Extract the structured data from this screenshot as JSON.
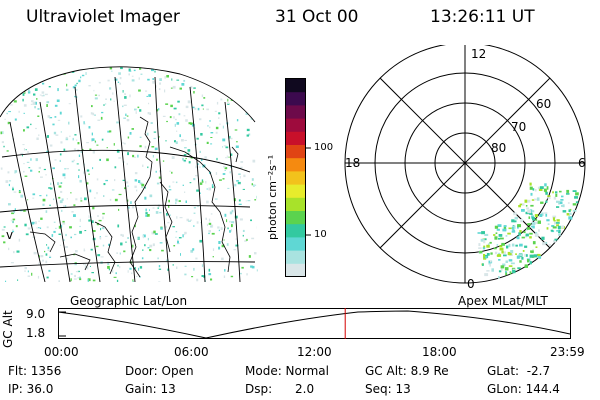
{
  "header": {
    "instrument": "Ultraviolet Imager",
    "date": "31 Oct 00",
    "time": "13:26:11 UT"
  },
  "colorbar": {
    "unit_label": "photon cm⁻²s⁻¹",
    "ticks": [
      "100",
      "10"
    ],
    "colors": [
      "#d9e6e8",
      "#a9e3e0",
      "#5fd7d4",
      "#33c9a0",
      "#5bd34e",
      "#a8e22a",
      "#e7ec2c",
      "#f2c21c",
      "#f58a10",
      "#e04414",
      "#c8102a",
      "#9e0b3d",
      "#6d0a4a",
      "#3c0a4e",
      "#10091f"
    ]
  },
  "polar_plot": {
    "mlt_labels": {
      "top": "12",
      "left": "18",
      "right": "6",
      "bottom": "0"
    },
    "lat_labels": [
      "60",
      "70",
      "80"
    ]
  },
  "timeline": {
    "left_label": "Geographic Lat/Lon",
    "right_label": "Apex MLat/MLT",
    "yaxis_title": "GC Alt",
    "y_ticks": [
      "9.0",
      "1.8"
    ],
    "x_ticks": [
      "00:00",
      "06:00",
      "12:00",
      "18:00",
      "23:59"
    ],
    "current_time_fraction": 0.56
  },
  "status": {
    "row1": {
      "flt": "Flt: 1356",
      "door": "Door: Open",
      "mode": "Mode: Normal",
      "gcalt": "GC Alt: 8.9 Re",
      "glat": "GLat:  -2.7"
    },
    "row2": {
      "ip": "IP: 36.0",
      "gain": "Gain: 13",
      "dsp": "Dsp:      2.0",
      "seq": "Seq: 13",
      "glon": "GLon: 144.4"
    }
  }
}
